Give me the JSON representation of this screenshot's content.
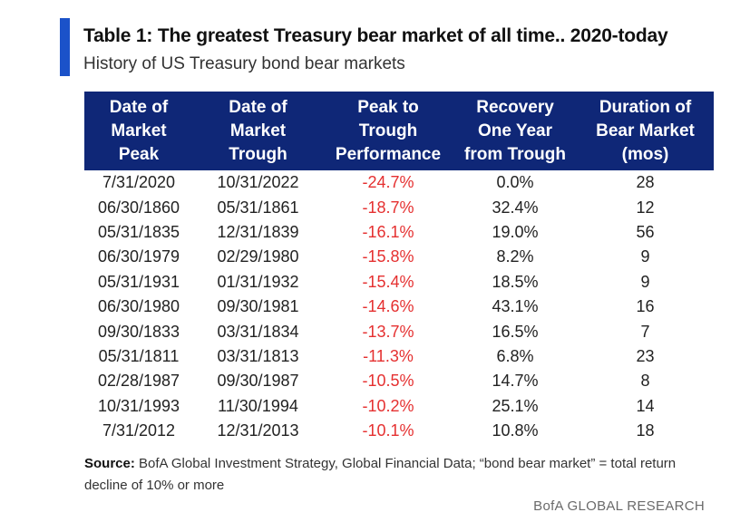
{
  "title": "Table 1: The greatest Treasury bear market of all time.. 2020-today",
  "subtitle": "History of US Treasury bond bear markets",
  "columns": [
    [
      "Date of",
      "Market",
      "Peak"
    ],
    [
      "Date of",
      "Market",
      "Trough"
    ],
    [
      "Peak to",
      "Trough",
      "Performance"
    ],
    [
      "Recovery",
      "One Year",
      "from Trough"
    ],
    [
      "Duration of",
      "Bear Market",
      "(mos)"
    ]
  ],
  "rows": [
    [
      "7/31/2020",
      "10/31/2022",
      "-24.7%",
      "0.0%",
      "28"
    ],
    [
      "06/30/1860",
      "05/31/1861",
      "-18.7%",
      "32.4%",
      "12"
    ],
    [
      "05/31/1835",
      "12/31/1839",
      "-16.1%",
      "19.0%",
      "56"
    ],
    [
      "06/30/1979",
      "02/29/1980",
      "-15.8%",
      "8.2%",
      "9"
    ],
    [
      "05/31/1931",
      "01/31/1932",
      "-15.4%",
      "18.5%",
      "9"
    ],
    [
      "06/30/1980",
      "09/30/1981",
      "-14.6%",
      "43.1%",
      "16"
    ],
    [
      "09/30/1833",
      "03/31/1834",
      "-13.7%",
      "16.5%",
      "7"
    ],
    [
      "05/31/1811",
      "03/31/1813",
      "-11.3%",
      "6.8%",
      "23"
    ],
    [
      "02/28/1987",
      "09/30/1987",
      "-10.5%",
      "14.7%",
      "8"
    ],
    [
      "10/31/1993",
      "11/30/1994",
      "-10.2%",
      "25.1%",
      "14"
    ],
    [
      "7/31/2012",
      "12/31/2013",
      "-10.1%",
      "10.8%",
      "18"
    ]
  ],
  "source": {
    "label": "Source:",
    "text": "BofA Global Investment Strategy, Global Financial Data; “bond bear market” = total return decline of 10% or more"
  },
  "brand": "BofA GLOBAL RESEARCH",
  "colors": {
    "accent": "#1b52c9",
    "header_bg": "#0f2777",
    "negative": "#e53030"
  }
}
